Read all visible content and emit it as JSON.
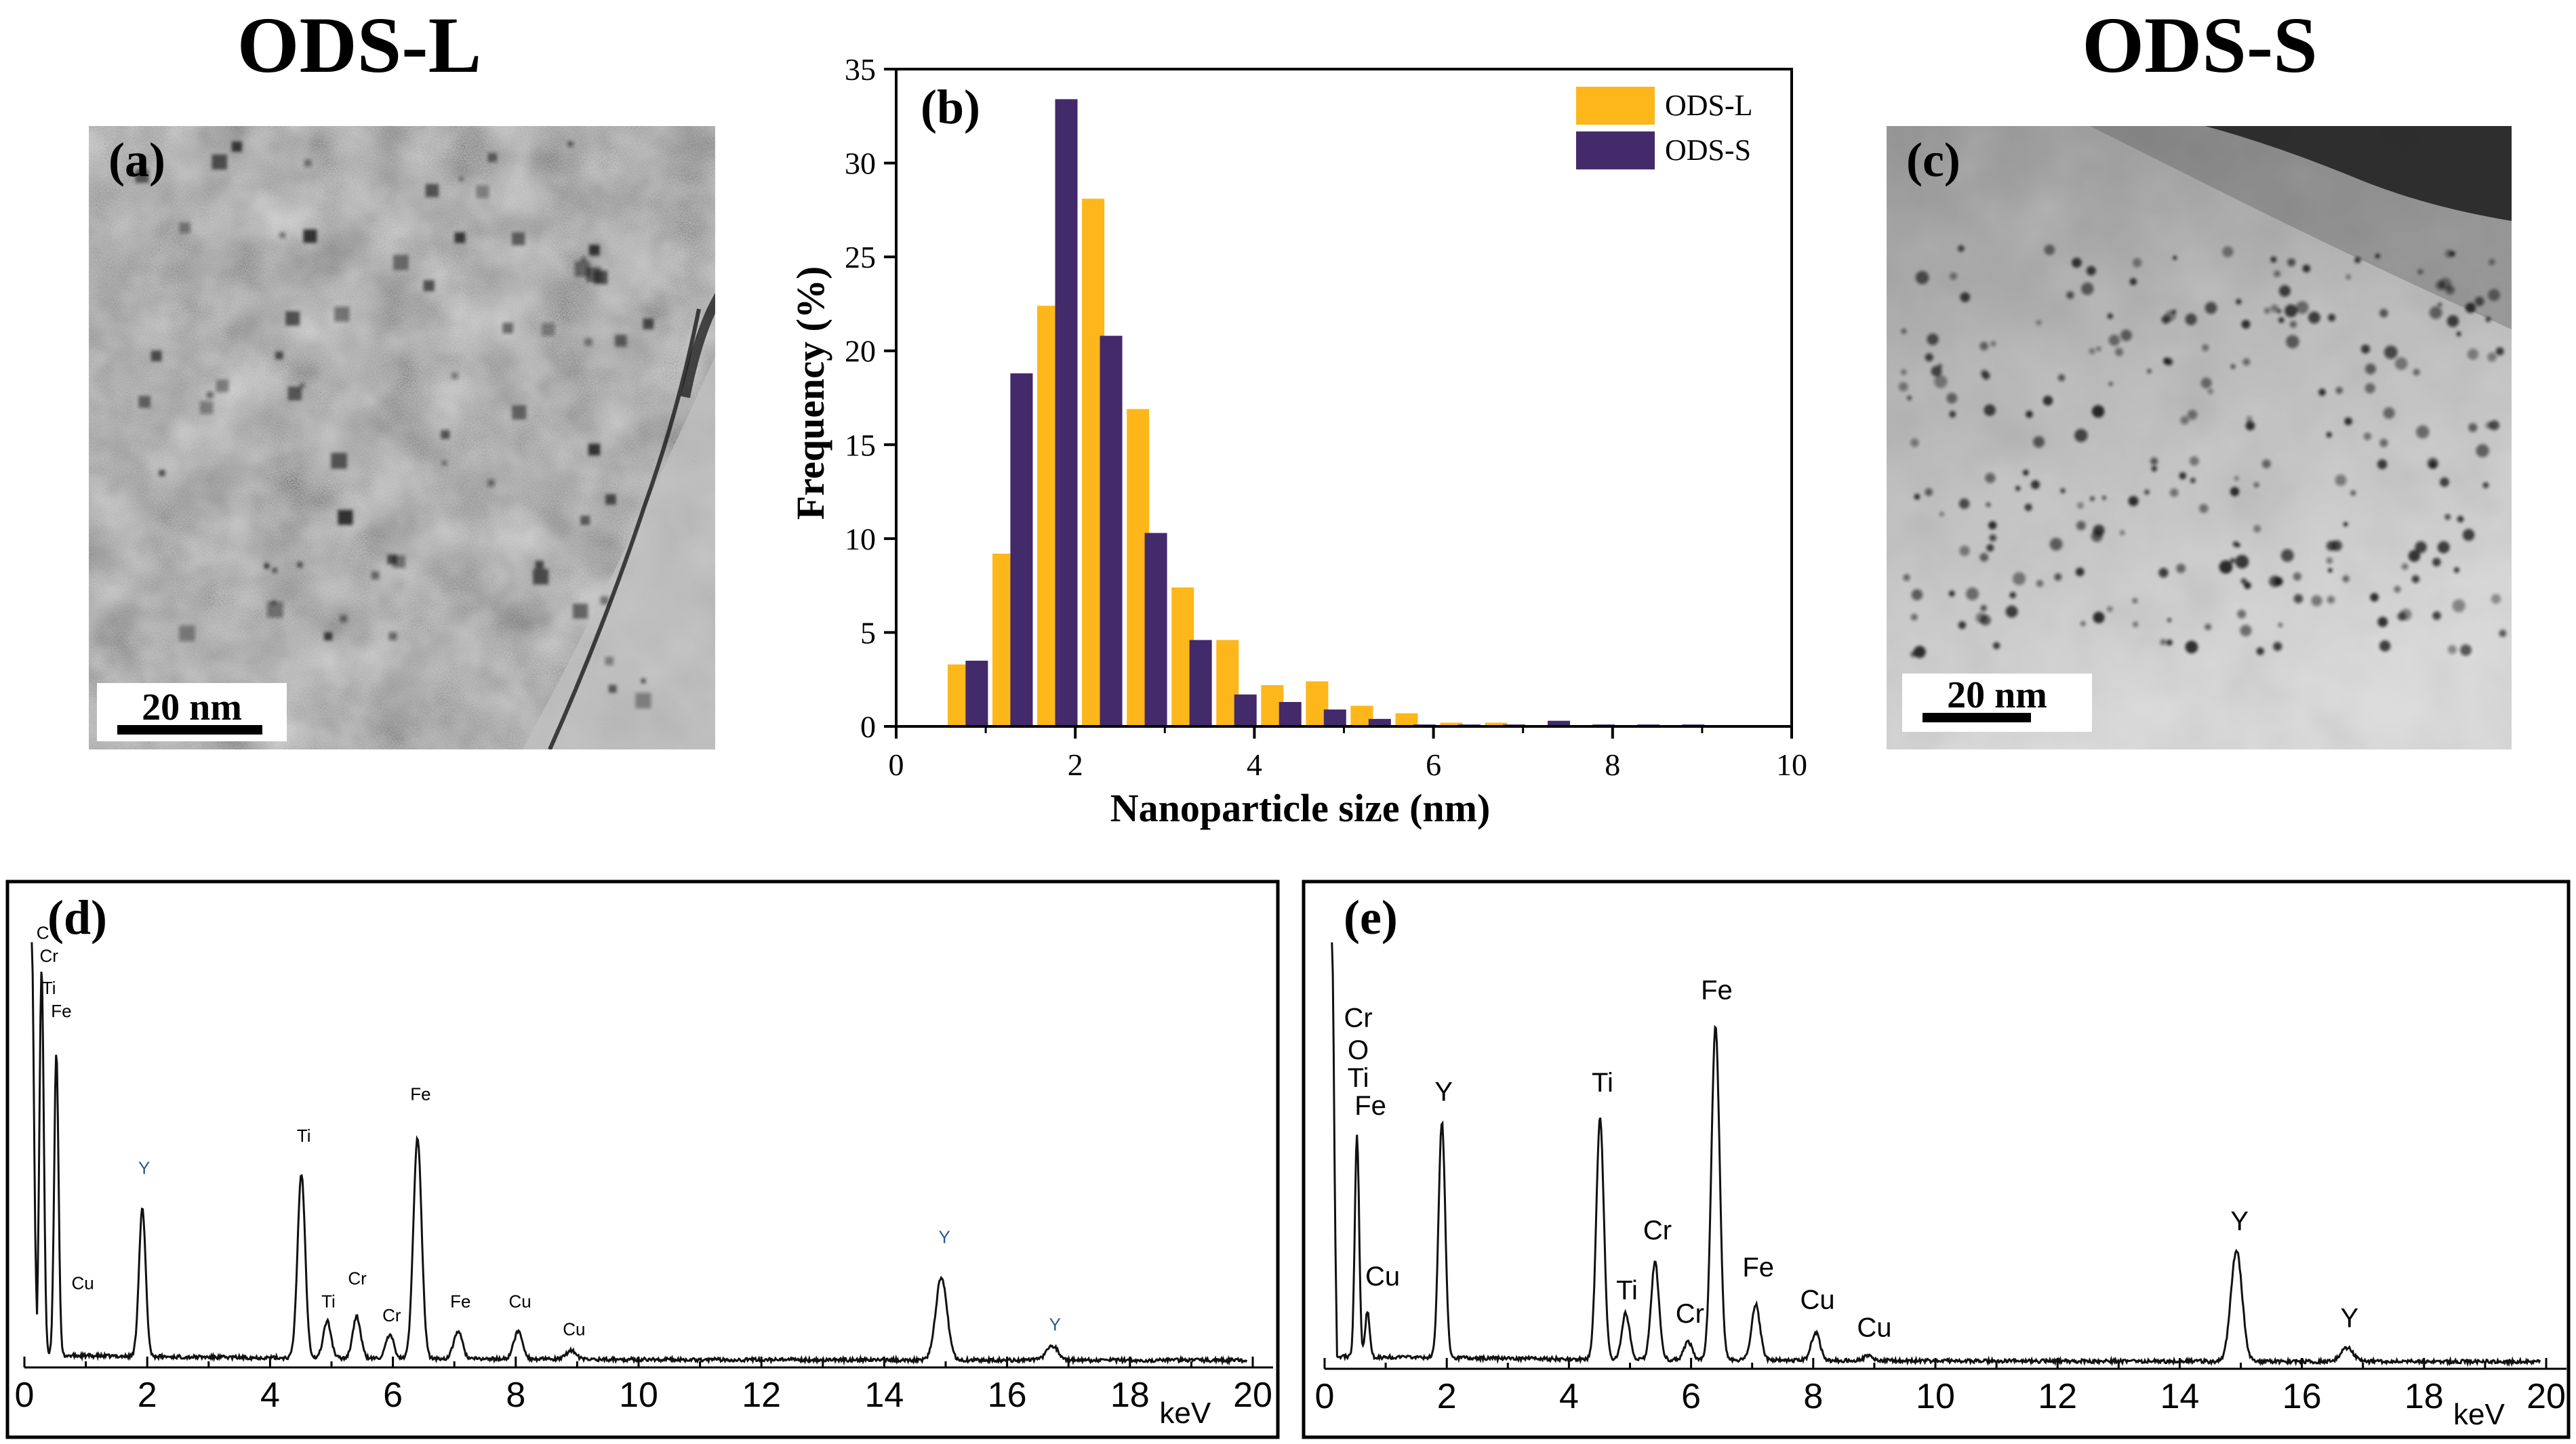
{
  "titles": {
    "left": "ODS-L",
    "right": "ODS-S"
  },
  "panel_a": {
    "label": "(a)",
    "scale": "20 nm"
  },
  "panel_c": {
    "label": "(c)",
    "scale": "20 nm"
  },
  "panel_b": {
    "label": "(b)"
  },
  "panel_d": {
    "label": "(d)"
  },
  "panel_e": {
    "label": "(e)"
  },
  "colors": {
    "ods_l": "#FDB71A",
    "ods_s": "#432A6B"
  },
  "chart_data": [
    {
      "id": "size-histogram",
      "type": "bar",
      "xlabel": "Nanoparticle size (nm)",
      "ylabel": "Frequency (%)",
      "xlim": [
        0,
        10
      ],
      "ylim": [
        0,
        35
      ],
      "xticks": [
        0,
        2,
        4,
        6,
        8,
        10
      ],
      "yticks": [
        0,
        5,
        10,
        15,
        20,
        25,
        30,
        35
      ],
      "legend": {
        "position": "top-right",
        "entries": [
          "ODS-L",
          "ODS-S"
        ]
      },
      "series": [
        {
          "name": "ODS-L",
          "color": "#FDB71A",
          "x": [
            0.7,
            1.2,
            1.7,
            2.2,
            2.7,
            3.2,
            3.7,
            4.2,
            4.7,
            5.2,
            5.7,
            6.2,
            6.7
          ],
          "values": [
            3.3,
            9.2,
            22.4,
            28.1,
            16.9,
            7.4,
            4.6,
            2.2,
            2.4,
            1.1,
            0.7,
            0.2,
            0.2
          ]
        },
        {
          "name": "ODS-S",
          "color": "#432A6B",
          "x": [
            0.9,
            1.4,
            1.9,
            2.4,
            2.9,
            3.4,
            3.9,
            4.4,
            4.9,
            5.4,
            5.9,
            6.4,
            6.9,
            7.4,
            7.9,
            8.4,
            8.9
          ],
          "values": [
            3.5,
            18.8,
            33.4,
            20.8,
            10.3,
            4.6,
            1.7,
            1.3,
            0.9,
            0.4,
            0.1,
            0.1,
            0.1,
            0.3,
            0.1,
            0.1,
            0.1
          ]
        }
      ]
    },
    {
      "id": "eds-d",
      "type": "line",
      "xunit": "keV",
      "xlim": [
        0,
        20
      ],
      "xticks": [
        0,
        2,
        4,
        6,
        8,
        10,
        12,
        14,
        16,
        18,
        20
      ],
      "peaks": [
        {
          "x": 0.28,
          "h": 0.84
        },
        {
          "x": 0.52,
          "h": 0.66
        },
        {
          "x": 1.92,
          "h": 0.32
        },
        {
          "x": 4.51,
          "h": 0.4
        },
        {
          "x": 4.93,
          "h": 0.08
        },
        {
          "x": 5.41,
          "h": 0.09
        },
        {
          "x": 5.95,
          "h": 0.05
        },
        {
          "x": 6.4,
          "h": 0.48
        },
        {
          "x": 7.06,
          "h": 0.06
        },
        {
          "x": 8.04,
          "h": 0.06
        },
        {
          "x": 8.9,
          "h": 0.02
        },
        {
          "x": 14.93,
          "h": 0.18
        },
        {
          "x": 16.74,
          "h": 0.03
        }
      ],
      "annotations": [
        {
          "text": "C",
          "x": 0.3,
          "h": 0.93,
          "color": "#000"
        },
        {
          "text": "Cr",
          "x": 0.4,
          "h": 0.88,
          "color": "#000"
        },
        {
          "text": "Ti",
          "x": 0.4,
          "h": 0.81,
          "color": "#000"
        },
        {
          "text": "Fe",
          "x": 0.6,
          "h": 0.76,
          "color": "#000"
        },
        {
          "text": "Y",
          "x": 1.95,
          "h": 0.42,
          "color": "#2b5a8f"
        },
        {
          "text": "Cu",
          "x": 0.95,
          "h": 0.17,
          "color": "#000"
        },
        {
          "text": "Ti",
          "x": 4.55,
          "h": 0.49,
          "color": "#000"
        },
        {
          "text": "Ti",
          "x": 4.95,
          "h": 0.13,
          "color": "#000"
        },
        {
          "text": "Cr",
          "x": 5.42,
          "h": 0.18,
          "color": "#000"
        },
        {
          "text": "Cr",
          "x": 5.98,
          "h": 0.1,
          "color": "#000"
        },
        {
          "text": "Fe",
          "x": 6.45,
          "h": 0.58,
          "color": "#000"
        },
        {
          "text": "Fe",
          "x": 7.1,
          "h": 0.13,
          "color": "#000"
        },
        {
          "text": "Cu",
          "x": 8.07,
          "h": 0.13,
          "color": "#000"
        },
        {
          "text": "Cu",
          "x": 8.95,
          "h": 0.07,
          "color": "#000"
        },
        {
          "text": "Y",
          "x": 14.98,
          "h": 0.27,
          "color": "#2b5a8f"
        },
        {
          "text": "Y",
          "x": 16.78,
          "h": 0.08,
          "color": "#2b5a8f"
        }
      ]
    },
    {
      "id": "eds-e",
      "type": "line",
      "xunit": "keV",
      "xlim": [
        0,
        20
      ],
      "xticks": [
        0,
        2,
        4,
        6,
        8,
        10,
        12,
        14,
        16,
        18,
        20
      ],
      "peaks": [
        {
          "x": 0.53,
          "h": 0.48
        },
        {
          "x": 0.7,
          "h": 0.1
        },
        {
          "x": 1.92,
          "h": 0.51
        },
        {
          "x": 4.51,
          "h": 0.52
        },
        {
          "x": 4.93,
          "h": 0.1
        },
        {
          "x": 5.41,
          "h": 0.21
        },
        {
          "x": 5.95,
          "h": 0.04
        },
        {
          "x": 6.4,
          "h": 0.72
        },
        {
          "x": 7.06,
          "h": 0.12
        },
        {
          "x": 8.04,
          "h": 0.06
        },
        {
          "x": 8.9,
          "h": 0.01
        },
        {
          "x": 14.93,
          "h": 0.24
        },
        {
          "x": 16.74,
          "h": 0.03
        }
      ],
      "annotations": [
        {
          "text": "Cr",
          "x": 0.55,
          "h": 0.74,
          "color": "#000"
        },
        {
          "text": "O",
          "x": 0.55,
          "h": 0.67,
          "color": "#000"
        },
        {
          "text": "Ti",
          "x": 0.55,
          "h": 0.61,
          "color": "#000"
        },
        {
          "text": "Fe",
          "x": 0.75,
          "h": 0.55,
          "color": "#000"
        },
        {
          "text": "Cu",
          "x": 0.95,
          "h": 0.18,
          "color": "#000"
        },
        {
          "text": "Y",
          "x": 1.95,
          "h": 0.58,
          "color": "#000"
        },
        {
          "text": "Ti",
          "x": 4.55,
          "h": 0.6,
          "color": "#000"
        },
        {
          "text": "Ti",
          "x": 4.95,
          "h": 0.15,
          "color": "#000"
        },
        {
          "text": "Cr",
          "x": 5.45,
          "h": 0.28,
          "color": "#000"
        },
        {
          "text": "Cr",
          "x": 5.98,
          "h": 0.1,
          "color": "#000"
        },
        {
          "text": "Fe",
          "x": 6.42,
          "h": 0.8,
          "color": "#000"
        },
        {
          "text": "Fe",
          "x": 7.1,
          "h": 0.2,
          "color": "#000"
        },
        {
          "text": "Cu",
          "x": 8.07,
          "h": 0.13,
          "color": "#000"
        },
        {
          "text": "Cu",
          "x": 9.0,
          "h": 0.07,
          "color": "#000"
        },
        {
          "text": "Y",
          "x": 14.98,
          "h": 0.3,
          "color": "#000"
        },
        {
          "text": "Y",
          "x": 16.78,
          "h": 0.09,
          "color": "#000"
        }
      ]
    }
  ]
}
